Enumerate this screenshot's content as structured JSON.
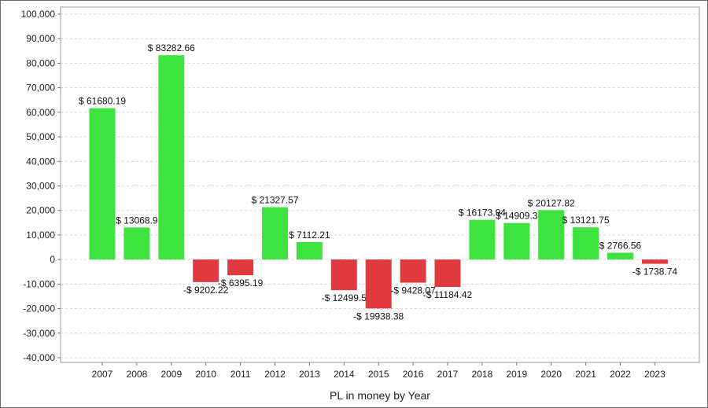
{
  "chart_data": {
    "type": "bar",
    "xlabel": "PL in money by Year",
    "ylabel": "",
    "ylim": [
      -40000,
      100000
    ],
    "yticks": [
      100000,
      90000,
      80000,
      70000,
      60000,
      50000,
      40000,
      30000,
      20000,
      10000,
      0,
      -10000,
      -20000,
      -30000,
      -40000
    ],
    "ytick_labels": [
      "100,000",
      "90,000",
      "80,000",
      "70,000",
      "60,000",
      "50,000",
      "40,000",
      "30,000",
      "20,000",
      "10,000",
      "0",
      "-10,000",
      "-20,000",
      "-30,000",
      "-40,000"
    ],
    "grid": true,
    "legend": "none",
    "colors": {
      "positive": "#3fe33f",
      "negative": "#e0393e"
    },
    "categories": [
      "2007",
      "2008",
      "2009",
      "2010",
      "2011",
      "2012",
      "2013",
      "2014",
      "2015",
      "2016",
      "2017",
      "2018",
      "2019",
      "2020",
      "2021",
      "2022",
      "2023"
    ],
    "values": [
      61680.19,
      13068.9,
      83282.66,
      -9202.22,
      -6395.19,
      21327.57,
      7112.21,
      -12499.5,
      -19938.38,
      -9428.07,
      -11184.42,
      16173.94,
      14909.3,
      20127.82,
      13121.75,
      2766.56,
      -1738.74
    ],
    "data_labels": [
      "$ 61680.19",
      "$ 13068.9",
      "$ 83282.66",
      "-$ 9202.22",
      "-$ 6395.19",
      "$ 21327.57",
      "$ 7112.21",
      "-$ 12499.5",
      "-$ 19938.38",
      "-$ 9428.07",
      "-$ 11184.42",
      "$ 16173.94",
      "$ 14909.3",
      "$ 20127.82",
      "$ 13121.75",
      "$ 2766.56",
      "-$ 1738.74"
    ]
  }
}
